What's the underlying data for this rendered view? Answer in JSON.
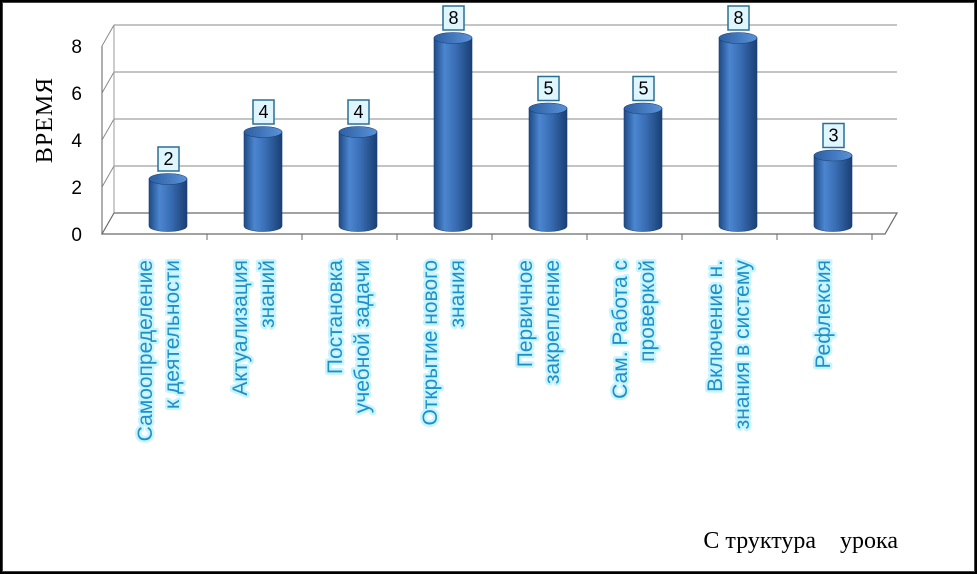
{
  "chart_data": {
    "type": "bar",
    "categories": [
      [
        "Самоопределение",
        "к деятельности"
      ],
      [
        "Актуализация",
        "знаний"
      ],
      [
        "Постановка",
        "учебной задачи"
      ],
      [
        "Открытие нового",
        "знания"
      ],
      [
        "Первичное",
        "закрепление"
      ],
      [
        "Сам. Работа с",
        "проверкой"
      ],
      [
        "Включение н.",
        "знания в систему"
      ],
      [
        "Рефлексия"
      ]
    ],
    "values": [
      2,
      4,
      4,
      8,
      5,
      5,
      8,
      3
    ],
    "data_labels": [
      "2",
      "4",
      "4",
      "8",
      "5",
      "5",
      "8",
      "3"
    ],
    "ylim": [
      0,
      8
    ],
    "yticks": [
      "0",
      "2",
      "4",
      "6",
      "8"
    ],
    "ylabel": "ВРЕМЯ",
    "xlabel": "С труктура    урока",
    "grid": true,
    "legend": "none",
    "style": "3d-cylinder",
    "bar_color": "#3a6fb6"
  }
}
